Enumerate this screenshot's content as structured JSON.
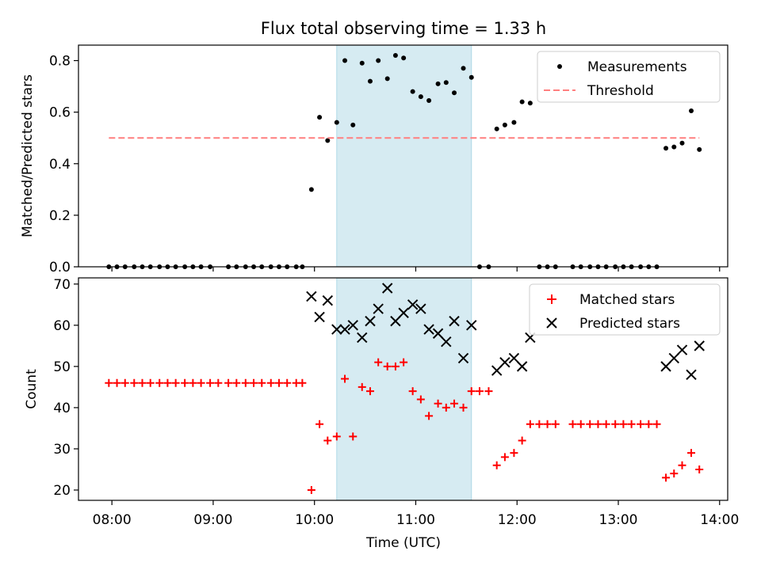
{
  "chart_data": {
    "title": "Flux total observing time = 1.33 h",
    "x_label": "Time (UTC)",
    "x_range_hours": [
      7.67,
      14.08
    ],
    "x_ticks": [
      {
        "value": 8,
        "label": "08:00"
      },
      {
        "value": 9,
        "label": "09:00"
      },
      {
        "value": 10,
        "label": "10:00"
      },
      {
        "value": 11,
        "label": "11:00"
      },
      {
        "value": 12,
        "label": "12:00"
      },
      {
        "value": 13,
        "label": "13:00"
      },
      {
        "value": 14,
        "label": "14:00"
      }
    ],
    "highlight_span": {
      "start": 10.22,
      "end": 11.55,
      "color": "#add8e6"
    },
    "panels": [
      {
        "type": "scatter",
        "ylabel": "Matched/Predicted stars",
        "ylim": [
          0,
          0.86
        ],
        "y_ticks": [
          {
            "value": 0.0,
            "label": "0.0"
          },
          {
            "value": 0.2,
            "label": "0.2"
          },
          {
            "value": 0.4,
            "label": "0.4"
          },
          {
            "value": 0.6,
            "label": "0.6"
          },
          {
            "value": 0.8,
            "label": "0.8"
          }
        ],
        "legend_position": "top-right",
        "series": [
          {
            "name": "Measurements",
            "marker": "dot",
            "color": "#000000",
            "points": [
              [
                7.97,
                0
              ],
              [
                8.05,
                0
              ],
              [
                8.13,
                0
              ],
              [
                8.22,
                0
              ],
              [
                8.3,
                0
              ],
              [
                8.38,
                0
              ],
              [
                8.47,
                0
              ],
              [
                8.55,
                0
              ],
              [
                8.63,
                0
              ],
              [
                8.72,
                0
              ],
              [
                8.8,
                0
              ],
              [
                8.88,
                0
              ],
              [
                8.97,
                0
              ],
              [
                9.15,
                0
              ],
              [
                9.23,
                0
              ],
              [
                9.32,
                0
              ],
              [
                9.4,
                0
              ],
              [
                9.48,
                0
              ],
              [
                9.57,
                0
              ],
              [
                9.65,
                0
              ],
              [
                9.73,
                0
              ],
              [
                9.82,
                0
              ],
              [
                9.88,
                0
              ],
              [
                9.97,
                0.3
              ],
              [
                10.05,
                0.58
              ],
              [
                10.13,
                0.49
              ],
              [
                10.22,
                0.56
              ],
              [
                10.3,
                0.8
              ],
              [
                10.38,
                0.55
              ],
              [
                10.47,
                0.79
              ],
              [
                10.55,
                0.72
              ],
              [
                10.63,
                0.8
              ],
              [
                10.72,
                0.73
              ],
              [
                10.8,
                0.82
              ],
              [
                10.88,
                0.81
              ],
              [
                10.97,
                0.68
              ],
              [
                11.05,
                0.66
              ],
              [
                11.13,
                0.645
              ],
              [
                11.22,
                0.71
              ],
              [
                11.3,
                0.715
              ],
              [
                11.38,
                0.675
              ],
              [
                11.47,
                0.77
              ],
              [
                11.55,
                0.735
              ],
              [
                11.63,
                0
              ],
              [
                11.72,
                0
              ],
              [
                11.8,
                0.535
              ],
              [
                11.88,
                0.55
              ],
              [
                11.97,
                0.56
              ],
              [
                12.05,
                0.64
              ],
              [
                12.13,
                0.635
              ],
              [
                12.22,
                0
              ],
              [
                12.3,
                0
              ],
              [
                12.38,
                0
              ],
              [
                12.55,
                0
              ],
              [
                12.63,
                0
              ],
              [
                12.72,
                0
              ],
              [
                12.8,
                0
              ],
              [
                12.88,
                0
              ],
              [
                12.97,
                0
              ],
              [
                13.05,
                0
              ],
              [
                13.13,
                0
              ],
              [
                13.22,
                0
              ],
              [
                13.3,
                0
              ],
              [
                13.38,
                0
              ],
              [
                13.47,
                0.46
              ],
              [
                13.55,
                0.465
              ],
              [
                13.63,
                0.48
              ],
              [
                13.72,
                0.605
              ],
              [
                13.8,
                0.455
              ]
            ]
          },
          {
            "name": "Threshold",
            "marker": "dashed-line",
            "color": "#ff7f7f",
            "points": [
              [
                7.97,
                0.5
              ],
              [
                13.8,
                0.5
              ]
            ]
          }
        ]
      },
      {
        "type": "scatter",
        "ylabel": "Count",
        "ylim": [
          17.5,
          71.5
        ],
        "y_ticks": [
          {
            "value": 20,
            "label": "20"
          },
          {
            "value": 30,
            "label": "30"
          },
          {
            "value": 40,
            "label": "40"
          },
          {
            "value": 50,
            "label": "50"
          },
          {
            "value": 60,
            "label": "60"
          },
          {
            "value": 70,
            "label": "70"
          }
        ],
        "legend_position": "top-right",
        "series": [
          {
            "name": "Matched stars",
            "marker": "plus",
            "color": "#ff0000",
            "points": [
              [
                7.97,
                46
              ],
              [
                8.05,
                46
              ],
              [
                8.13,
                46
              ],
              [
                8.22,
                46
              ],
              [
                8.3,
                46
              ],
              [
                8.38,
                46
              ],
              [
                8.47,
                46
              ],
              [
                8.55,
                46
              ],
              [
                8.63,
                46
              ],
              [
                8.72,
                46
              ],
              [
                8.8,
                46
              ],
              [
                8.88,
                46
              ],
              [
                8.97,
                46
              ],
              [
                9.05,
                46
              ],
              [
                9.15,
                46
              ],
              [
                9.23,
                46
              ],
              [
                9.32,
                46
              ],
              [
                9.4,
                46
              ],
              [
                9.48,
                46
              ],
              [
                9.57,
                46
              ],
              [
                9.65,
                46
              ],
              [
                9.73,
                46
              ],
              [
                9.82,
                46
              ],
              [
                9.88,
                46
              ],
              [
                9.97,
                20
              ],
              [
                10.05,
                36
              ],
              [
                10.13,
                32
              ],
              [
                10.22,
                33
              ],
              [
                10.3,
                47
              ],
              [
                10.38,
                33
              ],
              [
                10.47,
                45
              ],
              [
                10.55,
                44
              ],
              [
                10.63,
                51
              ],
              [
                10.72,
                50
              ],
              [
                10.8,
                50
              ],
              [
                10.88,
                51
              ],
              [
                10.97,
                44
              ],
              [
                11.05,
                42
              ],
              [
                11.13,
                38
              ],
              [
                11.22,
                41
              ],
              [
                11.3,
                40
              ],
              [
                11.38,
                41
              ],
              [
                11.47,
                40
              ],
              [
                11.55,
                44
              ],
              [
                11.63,
                44
              ],
              [
                11.72,
                44
              ],
              [
                11.8,
                26
              ],
              [
                11.88,
                28
              ],
              [
                11.97,
                29
              ],
              [
                12.05,
                32
              ],
              [
                12.13,
                36
              ],
              [
                12.22,
                36
              ],
              [
                12.3,
                36
              ],
              [
                12.38,
                36
              ],
              [
                12.55,
                36
              ],
              [
                12.63,
                36
              ],
              [
                12.72,
                36
              ],
              [
                12.8,
                36
              ],
              [
                12.88,
                36
              ],
              [
                12.97,
                36
              ],
              [
                13.05,
                36
              ],
              [
                13.13,
                36
              ],
              [
                13.22,
                36
              ],
              [
                13.3,
                36
              ],
              [
                13.38,
                36
              ],
              [
                13.47,
                23
              ],
              [
                13.55,
                24
              ],
              [
                13.63,
                26
              ],
              [
                13.72,
                29
              ],
              [
                13.8,
                25
              ]
            ]
          },
          {
            "name": "Predicted stars",
            "marker": "x",
            "color": "#000000",
            "points": [
              [
                9.97,
                67
              ],
              [
                10.05,
                62
              ],
              [
                10.13,
                66
              ],
              [
                10.22,
                59
              ],
              [
                10.3,
                59
              ],
              [
                10.38,
                60
              ],
              [
                10.47,
                57
              ],
              [
                10.55,
                61
              ],
              [
                10.63,
                64
              ],
              [
                10.72,
                69
              ],
              [
                10.8,
                61
              ],
              [
                10.88,
                63
              ],
              [
                10.97,
                65
              ],
              [
                11.05,
                64
              ],
              [
                11.13,
                59
              ],
              [
                11.22,
                58
              ],
              [
                11.3,
                56
              ],
              [
                11.38,
                61
              ],
              [
                11.47,
                52
              ],
              [
                11.55,
                60
              ],
              [
                11.8,
                49
              ],
              [
                11.88,
                51
              ],
              [
                11.97,
                52
              ],
              [
                12.05,
                50
              ],
              [
                12.13,
                57
              ],
              [
                13.47,
                50
              ],
              [
                13.55,
                52
              ],
              [
                13.63,
                54
              ],
              [
                13.72,
                48
              ],
              [
                13.8,
                55
              ]
            ]
          }
        ]
      }
    ]
  }
}
